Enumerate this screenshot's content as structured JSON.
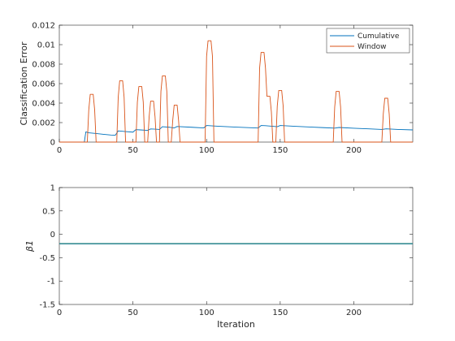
{
  "chart_data": [
    {
      "type": "line",
      "ylabel": "Classification Error",
      "xlabel": "",
      "xlim": [
        0,
        240
      ],
      "ylim": [
        0,
        0.012
      ],
      "x_ticks": [
        0,
        50,
        100,
        150,
        200
      ],
      "y_ticks": [
        0,
        0.002,
        0.004,
        0.006,
        0.008,
        0.01,
        0.012
      ],
      "x_tick_labels": [
        "0",
        "50",
        "100",
        "150",
        "200"
      ],
      "y_tick_labels": [
        "0",
        "0.002",
        "0.004",
        "0.006",
        "0.008",
        "0.01",
        "0.012"
      ],
      "legend": {
        "position": "top-right",
        "entries": [
          "Cumulative",
          "Window"
        ]
      },
      "grid": false,
      "series": [
        {
          "name": "Cumulative",
          "color": "#0072BD",
          "x": [
            0,
            17,
            18,
            20,
            25,
            30,
            35,
            38,
            40,
            45,
            50,
            52,
            55,
            60,
            62,
            65,
            68,
            70,
            75,
            78,
            80,
            90,
            98,
            100,
            105,
            110,
            120,
            130,
            135,
            137,
            140,
            145,
            148,
            150,
            160,
            170,
            180,
            187,
            190,
            200,
            210,
            219,
            222,
            230,
            240
          ],
          "values": [
            0,
            0,
            0.00105,
            0.00095,
            0.00088,
            0.0008,
            0.00072,
            0.0007,
            0.00115,
            0.00108,
            0.00102,
            0.00128,
            0.00125,
            0.0012,
            0.00135,
            0.00133,
            0.0013,
            0.00158,
            0.00152,
            0.00145,
            0.0016,
            0.00152,
            0.00145,
            0.0017,
            0.00165,
            0.00161,
            0.00154,
            0.00147,
            0.00144,
            0.0017,
            0.00168,
            0.00162,
            0.00158,
            0.0017,
            0.00162,
            0.00155,
            0.00148,
            0.00143,
            0.0015,
            0.00142,
            0.00136,
            0.0013,
            0.00136,
            0.0013,
            0.00125
          ]
        },
        {
          "name": "Window",
          "color": "#D95319",
          "x": [
            0,
            19,
            20,
            21,
            22,
            23,
            24,
            25,
            39,
            40,
            41,
            42,
            43,
            44,
            45,
            52,
            53,
            54,
            55,
            56,
            57,
            58,
            60,
            61,
            62,
            63,
            64,
            65,
            66,
            68,
            69,
            70,
            71,
            72,
            73,
            74,
            76,
            77,
            78,
            79,
            80,
            81,
            82,
            99,
            100,
            101,
            102,
            103,
            104,
            105,
            135,
            136,
            137,
            138,
            139,
            140,
            141,
            142,
            143,
            144,
            145,
            147,
            148,
            149,
            150,
            151,
            152,
            153,
            186,
            187,
            188,
            189,
            190,
            191,
            192,
            219,
            220,
            221,
            222,
            223,
            224,
            225,
            240
          ],
          "values": [
            0,
            0,
            0.0033,
            0.0049,
            0.0049,
            0.0049,
            0.0033,
            0,
            0,
            0.0046,
            0.0063,
            0.0063,
            0.0063,
            0.0046,
            0,
            0,
            0.0041,
            0.0057,
            0.0057,
            0.0057,
            0.0041,
            0,
            0,
            0.0026,
            0.0042,
            0.0042,
            0.0042,
            0.0026,
            0,
            0,
            0.0052,
            0.0068,
            0.0068,
            0.0068,
            0.0052,
            0,
            0,
            0.0022,
            0.0038,
            0.0038,
            0.0038,
            0.0022,
            0,
            0,
            0.0088,
            0.0104,
            0.0104,
            0.0104,
            0.0088,
            0,
            0,
            0.0076,
            0.0092,
            0.0092,
            0.0092,
            0.0076,
            0.0047,
            0.0047,
            0.0047,
            0.0031,
            0,
            0,
            0.0037,
            0.0053,
            0.0053,
            0.0053,
            0.0037,
            0,
            0,
            0.0036,
            0.0052,
            0.0052,
            0.0052,
            0.0036,
            0,
            0,
            0.0029,
            0.0045,
            0.0045,
            0.0045,
            0.0029,
            0,
            0
          ]
        }
      ]
    },
    {
      "type": "line",
      "ylabel": "β1",
      "xlabel": "Iteration",
      "xlim": [
        0,
        240
      ],
      "ylim": [
        -1.5,
        1
      ],
      "x_ticks": [
        0,
        50,
        100,
        150,
        200
      ],
      "y_ticks": [
        -1.5,
        -1,
        -0.5,
        0,
        0.5,
        1
      ],
      "x_tick_labels": [
        "0",
        "50",
        "100",
        "150",
        "200"
      ],
      "y_tick_labels": [
        "-1.5",
        "-1",
        "-0.5",
        "0",
        "0.5",
        "1"
      ],
      "grid": false,
      "series": [
        {
          "color": "#0072BD",
          "overlay_color": "#77AC30",
          "x": [
            0,
            240
          ],
          "values": [
            -0.2,
            -0.2
          ]
        }
      ]
    }
  ]
}
